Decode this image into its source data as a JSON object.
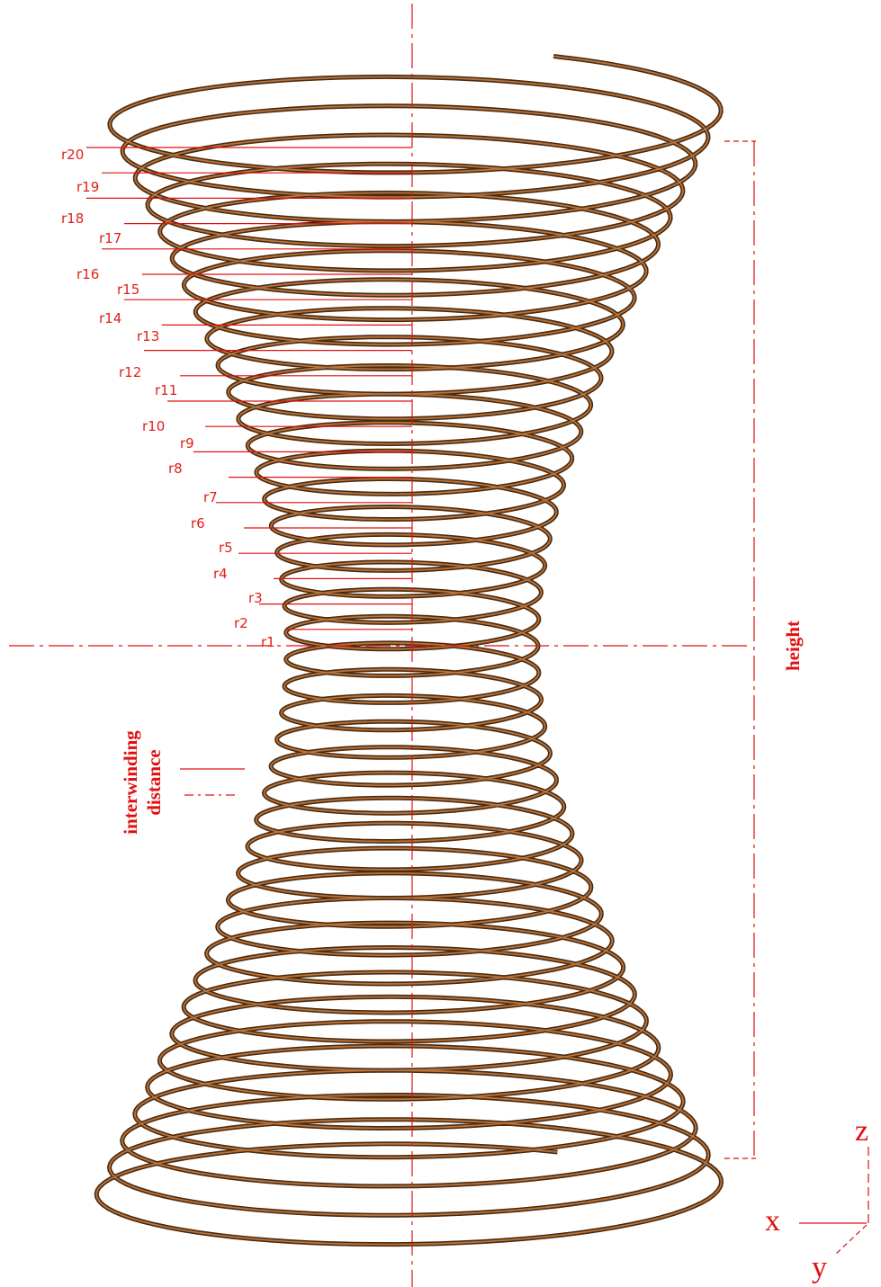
{
  "radius_labels": [
    "r1",
    "r2",
    "r3",
    "r4",
    "r5",
    "r6",
    "r7",
    "r8",
    "r9",
    "r10",
    "r11",
    "r12",
    "r13",
    "r14",
    "r15",
    "r16",
    "r17",
    "r18",
    "r19",
    "r20"
  ],
  "height_label": "height",
  "interwinding_label": [
    "interwinding",
    "distance"
  ],
  "axes": {
    "x": "x",
    "y": "y",
    "z": "z"
  }
}
